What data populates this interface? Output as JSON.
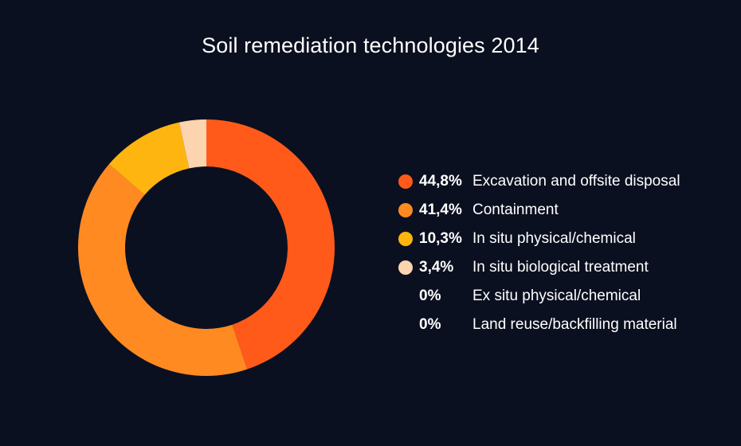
{
  "chart_data": {
    "type": "pie",
    "title": "Soil remediation technologies 2014",
    "donut": true,
    "legend_position": "right",
    "slices": [
      {
        "label": "Excavation and offsite disposal",
        "value": 44.8,
        "value_label": "44,8%",
        "color": "#ff5a1a"
      },
      {
        "label": "Containment",
        "value": 41.4,
        "value_label": "41,4%",
        "color": "#ff8a22"
      },
      {
        "label": "In situ physical/chemical",
        "value": 10.3,
        "value_label": "10,3%",
        "color": "#ffb50f"
      },
      {
        "label": "In situ biological treatment",
        "value": 3.4,
        "value_label": "3,4%",
        "color": "#fdd4b0"
      },
      {
        "label": "Ex situ physical/chemical",
        "value": 0,
        "value_label": "0%",
        "color": ""
      },
      {
        "label": "Land reuse/backfilling material",
        "value": 0,
        "value_label": "0%",
        "color": ""
      }
    ]
  }
}
